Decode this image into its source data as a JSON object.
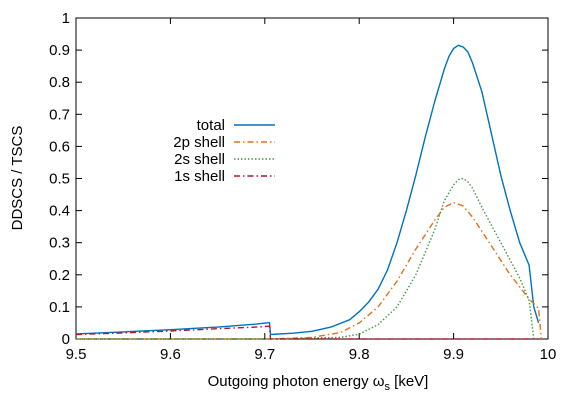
{
  "chart_data": {
    "type": "line",
    "xlabel": "Outgoing photon energy ω",
    "xlabel_subscript": "s",
    "xlabel_suffix": " [keV]",
    "ylabel": "DDSCS / TSCS",
    "xlim": [
      9.5,
      10.0
    ],
    "ylim": [
      0,
      1.0
    ],
    "x_ticks": [
      9.5,
      9.6,
      9.7,
      9.8,
      9.9,
      10.0
    ],
    "x_tick_labels": [
      "9.5",
      "9.6",
      "9.7",
      "9.8",
      "9.9",
      "10"
    ],
    "y_ticks": [
      0,
      0.1,
      0.2,
      0.3,
      0.4,
      0.5,
      0.6,
      0.7,
      0.8,
      0.9,
      1.0
    ],
    "y_tick_labels": [
      "0",
      "0.1",
      "0.2",
      "0.3",
      "0.4",
      "0.5",
      "0.6",
      "0.7",
      "0.8",
      "0.9",
      "1"
    ],
    "grid": false,
    "legend_position": "upper-left",
    "series": [
      {
        "name": "total",
        "color": "#0072bd",
        "dash": "solid",
        "x": [
          9.5,
          9.55,
          9.6,
          9.65,
          9.69,
          9.705,
          9.706,
          9.73,
          9.75,
          9.77,
          9.79,
          9.8,
          9.81,
          9.82,
          9.83,
          9.84,
          9.85,
          9.86,
          9.87,
          9.88,
          9.89,
          9.895,
          9.9,
          9.905,
          9.91,
          9.915,
          9.92,
          9.93,
          9.94,
          9.95,
          9.96,
          9.97,
          9.975,
          9.98,
          9.985,
          9.99
        ],
        "y": [
          0.016,
          0.022,
          0.029,
          0.037,
          0.046,
          0.051,
          0.014,
          0.018,
          0.024,
          0.037,
          0.06,
          0.085,
          0.115,
          0.155,
          0.215,
          0.3,
          0.4,
          0.51,
          0.63,
          0.74,
          0.84,
          0.88,
          0.905,
          0.915,
          0.91,
          0.895,
          0.86,
          0.77,
          0.64,
          0.51,
          0.4,
          0.3,
          0.265,
          0.23,
          0.1,
          0.05
        ]
      },
      {
        "name": "2p shell",
        "color": "#e0701a",
        "dash": "dash-dot",
        "x": [
          9.5,
          9.6,
          9.705,
          9.706,
          9.75,
          9.78,
          9.8,
          9.82,
          9.84,
          9.86,
          9.88,
          9.89,
          9.9,
          9.91,
          9.92,
          9.94,
          9.96,
          9.98,
          9.99,
          9.993
        ],
        "y": [
          0.0,
          0.0,
          0.0,
          0.0,
          0.005,
          0.02,
          0.05,
          0.1,
          0.18,
          0.28,
          0.37,
          0.41,
          0.425,
          0.415,
          0.38,
          0.29,
          0.2,
          0.125,
          0.095,
          0.0
        ]
      },
      {
        "name": "2s shell",
        "color": "#3f9a3f",
        "dash": "dotted",
        "x": [
          9.5,
          9.6,
          9.7,
          9.78,
          9.8,
          9.82,
          9.84,
          9.86,
          9.88,
          9.89,
          9.9,
          9.905,
          9.91,
          9.915,
          9.92,
          9.93,
          9.95,
          9.97,
          9.98,
          9.985
        ],
        "y": [
          0.0,
          0.0,
          0.0,
          0.005,
          0.015,
          0.045,
          0.1,
          0.2,
          0.34,
          0.43,
          0.48,
          0.497,
          0.5,
          0.49,
          0.47,
          0.41,
          0.3,
          0.19,
          0.12,
          0.0
        ]
      },
      {
        "name": "1s shell",
        "color": "#b2182b",
        "dash": "dash-dot",
        "x": [
          9.5,
          9.55,
          9.6,
          9.65,
          9.69,
          9.705,
          9.706,
          9.75,
          9.8,
          9.85,
          9.9,
          9.95,
          9.99
        ],
        "y": [
          0.014,
          0.019,
          0.025,
          0.032,
          0.037,
          0.04,
          0.0,
          0.0,
          0.0,
          0.0,
          0.0,
          0.0,
          0.0
        ]
      }
    ]
  }
}
